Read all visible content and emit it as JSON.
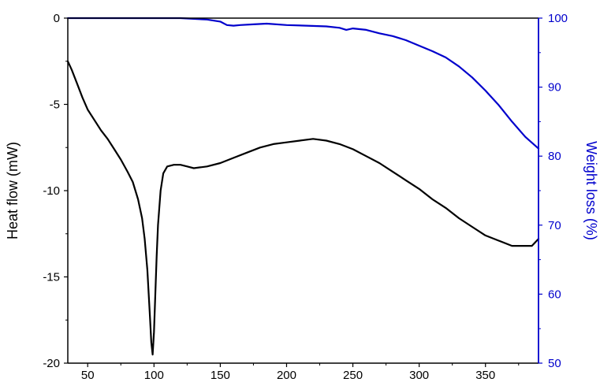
{
  "chart_data": {
    "type": "line",
    "title": "",
    "xlabel": "",
    "ylabel": "Heat flow (mW)",
    "y2label": "Weight loss (%)",
    "xlim": [
      35,
      390
    ],
    "ylim": [
      -20,
      0
    ],
    "y2lim": [
      50,
      100
    ],
    "x_ticks": [
      50,
      100,
      150,
      200,
      250,
      300,
      350
    ],
    "y_ticks": [
      0,
      -5,
      -10,
      -15,
      -20
    ],
    "y2_ticks": [
      100,
      90,
      80,
      70,
      60,
      50
    ],
    "grid": false,
    "legend": "none",
    "series": [
      {
        "axis": "left",
        "color": "#000000",
        "x": [
          35,
          38,
          42,
          46,
          50,
          55,
          60,
          65,
          70,
          75,
          80,
          84,
          88,
          91,
          93,
          95,
          96,
          97,
          98,
          99,
          100,
          101,
          102,
          103,
          105,
          107,
          110,
          115,
          120,
          125,
          130,
          140,
          150,
          160,
          170,
          180,
          190,
          200,
          210,
          220,
          230,
          240,
          250,
          260,
          270,
          280,
          290,
          300,
          310,
          320,
          330,
          340,
          350,
          360,
          370,
          380,
          385,
          390
        ],
        "y": [
          -2.5,
          -3.0,
          -3.8,
          -4.6,
          -5.3,
          -5.9,
          -6.5,
          -7.0,
          -7.6,
          -8.2,
          -8.9,
          -9.5,
          -10.5,
          -11.6,
          -12.8,
          -14.6,
          -16.0,
          -17.4,
          -18.8,
          -19.5,
          -18.2,
          -16.0,
          -13.8,
          -12.0,
          -10.0,
          -9.0,
          -8.6,
          -8.5,
          -8.5,
          -8.6,
          -8.7,
          -8.6,
          -8.4,
          -8.1,
          -7.8,
          -7.5,
          -7.3,
          -7.2,
          -7.1,
          -7.0,
          -7.1,
          -7.3,
          -7.6,
          -8.0,
          -8.4,
          -8.9,
          -9.4,
          -9.9,
          -10.5,
          -11.0,
          -11.6,
          -12.1,
          -12.6,
          -12.9,
          -13.2,
          -13.2,
          -13.2,
          -12.8
        ]
      },
      {
        "axis": "right",
        "color": "#0000cc",
        "x": [
          35,
          60,
          90,
          120,
          140,
          150,
          155,
          160,
          165,
          175,
          185,
          200,
          215,
          230,
          240,
          245,
          250,
          260,
          270,
          280,
          290,
          300,
          310,
          320,
          330,
          340,
          350,
          360,
          370,
          380,
          390
        ],
        "y": [
          100,
          100,
          100,
          100,
          99.8,
          99.5,
          99.0,
          98.9,
          99.0,
          99.1,
          99.2,
          99.0,
          98.9,
          98.8,
          98.6,
          98.3,
          98.5,
          98.3,
          97.8,
          97.4,
          96.8,
          96.0,
          95.2,
          94.3,
          93.0,
          91.4,
          89.5,
          87.4,
          85.0,
          82.8,
          81.1
        ]
      }
    ]
  }
}
